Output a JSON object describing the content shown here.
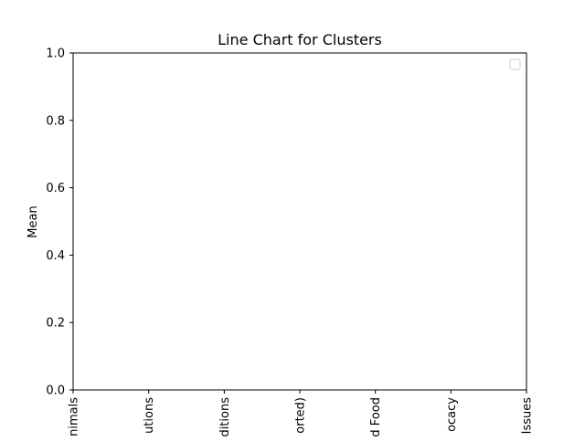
{
  "chart_data": {
    "type": "line",
    "title": "Line Chart for Clusters",
    "xlabel": "",
    "ylabel": "Mean",
    "categories": [
      "nimals",
      "utions",
      "ditions",
      "orted)",
      "d Food",
      "ocacy",
      "Issues"
    ],
    "series": [],
    "ylim": [
      0,
      1
    ],
    "yticks": [
      "0.0",
      "0.2",
      "0.4",
      "0.6",
      "0.8",
      "1.0"
    ],
    "ytick_values": [
      0,
      0.2,
      0.4,
      0.6,
      0.8,
      1.0
    ],
    "grid": false,
    "legend": {
      "placement": "top-right",
      "entries": []
    }
  }
}
